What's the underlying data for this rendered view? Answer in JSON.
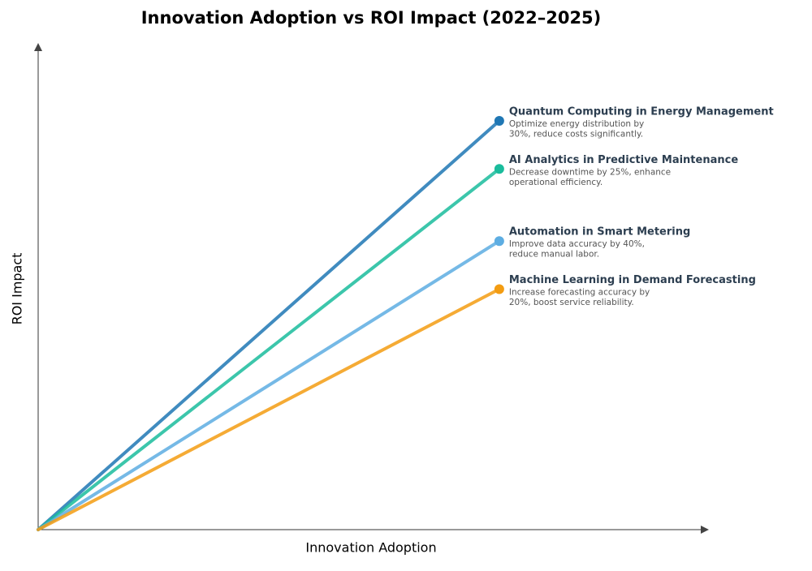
{
  "chart_data": {
    "type": "line",
    "title": "Innovation Adoption vs ROI Impact (2022–2025)",
    "x_label": "Innovation Adoption",
    "y_label": "ROI Impact",
    "xlim": [
      0,
      1
    ],
    "ylim": [
      0,
      1
    ],
    "series": [
      {
        "name": "Quantum Computing in Energy Management",
        "description_lines": [
          "Optimize energy distribution by",
          "30%, reduce costs significantly."
        ],
        "color": "#1f77b4",
        "x": [
          0,
          0.69
        ],
        "values": [
          0,
          0.85
        ]
      },
      {
        "name": "AI Analytics in Predictive Maintenance",
        "description_lines": [
          "Decrease downtime by 25%, enhance",
          "operational efficiency."
        ],
        "color": "#1abc9c",
        "x": [
          0,
          0.69
        ],
        "values": [
          0,
          0.75
        ]
      },
      {
        "name": "Automation in Smart Metering",
        "description_lines": [
          "Improve data accuracy by 40%,",
          "reduce manual labor."
        ],
        "color": "#5dade2",
        "x": [
          0,
          0.69
        ],
        "values": [
          0,
          0.6
        ]
      },
      {
        "name": "Machine Learning in Demand Forecasting",
        "description_lines": [
          "Increase forecasting accuracy by",
          "20%, boost service reliability."
        ],
        "color": "#f39c12",
        "x": [
          0,
          0.69
        ],
        "values": [
          0,
          0.5
        ]
      }
    ]
  }
}
